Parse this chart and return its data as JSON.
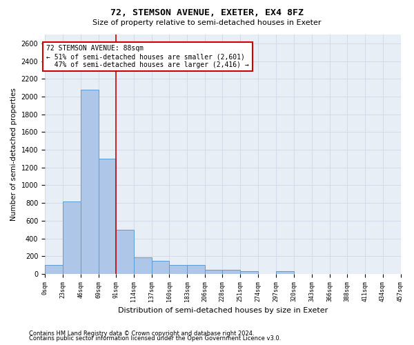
{
  "title": "72, STEMSON AVENUE, EXETER, EX4 8FZ",
  "subtitle": "Size of property relative to semi-detached houses in Exeter",
  "xlabel": "Distribution of semi-detached houses by size in Exeter",
  "ylabel": "Number of semi-detached properties",
  "footnote1": "Contains HM Land Registry data © Crown copyright and database right 2024.",
  "footnote2": "Contains public sector information licensed under the Open Government Licence v3.0.",
  "property_size": 88,
  "property_label": "72 STEMSON AVENUE: 88sqm",
  "pct_smaller": 51,
  "n_smaller": 2601,
  "pct_larger": 47,
  "n_larger": 2416,
  "bin_edges": [
    0,
    23,
    46,
    69,
    91,
    114,
    137,
    160,
    183,
    206,
    228,
    251,
    274,
    297,
    320,
    343,
    366,
    388,
    411,
    434,
    457
  ],
  "bar_heights": [
    100,
    820,
    2080,
    1300,
    500,
    185,
    150,
    100,
    100,
    50,
    50,
    30,
    0,
    30,
    0,
    0,
    0,
    0,
    0,
    0
  ],
  "bar_color": "#aec6e8",
  "bar_edge_color": "#5b9bd5",
  "vline_x": 91,
  "vline_color": "#cc0000",
  "annotation_box_color": "#cc0000",
  "grid_color": "#cdd8e8",
  "background_color": "#e8eef5",
  "ylim": [
    0,
    2700
  ],
  "yticks": [
    0,
    200,
    400,
    600,
    800,
    1000,
    1200,
    1400,
    1600,
    1800,
    2000,
    2200,
    2400,
    2600
  ]
}
